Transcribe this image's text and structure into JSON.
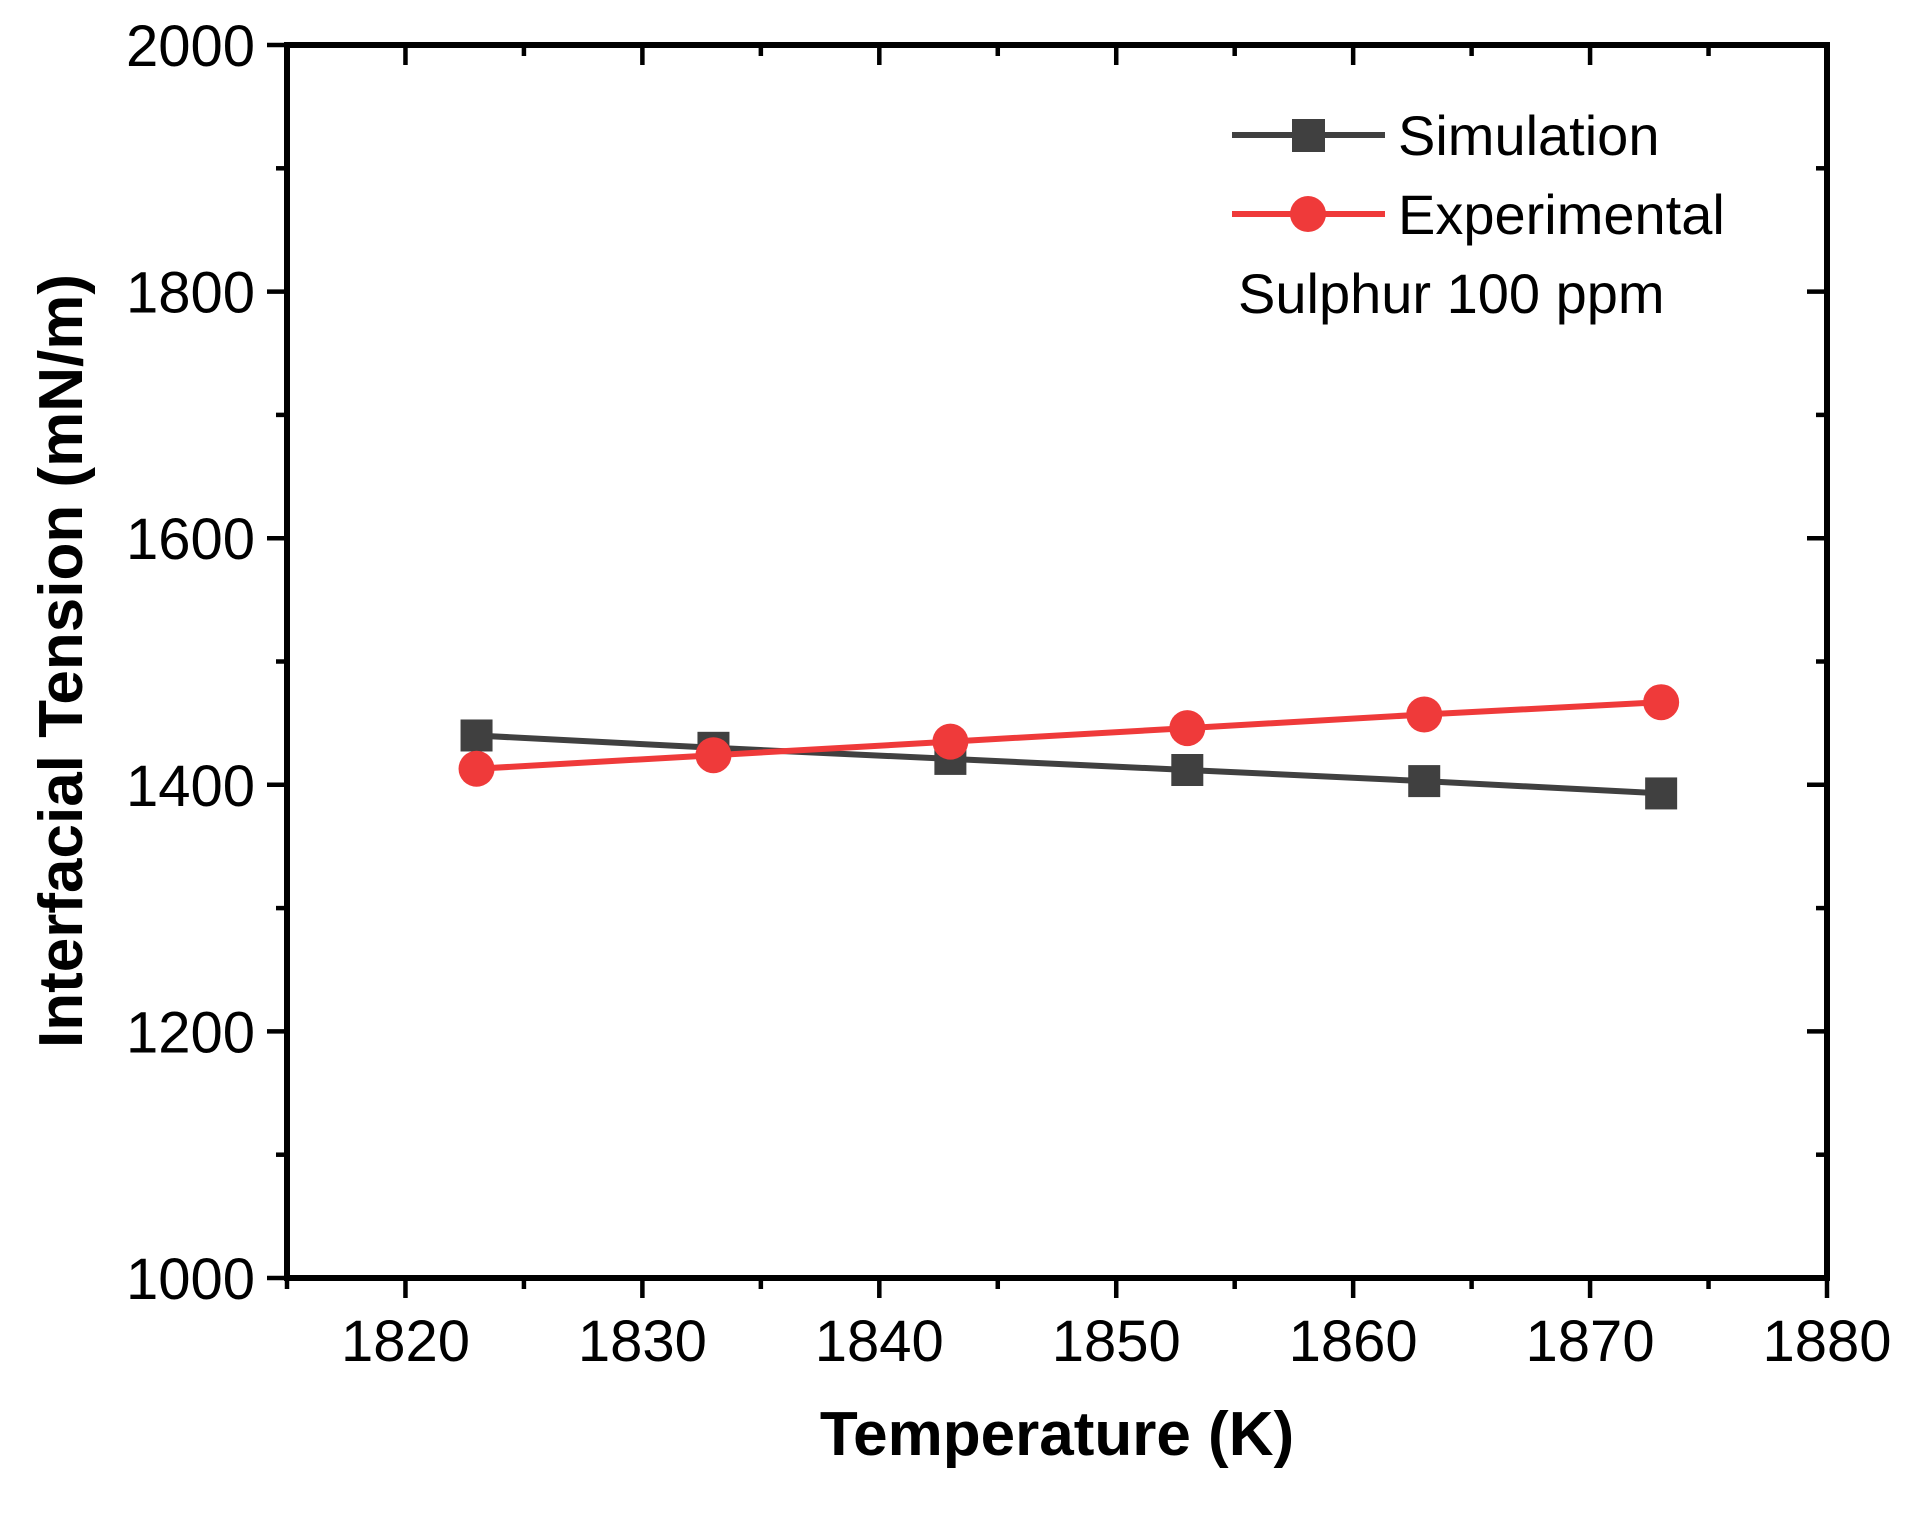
{
  "chart_data": {
    "type": "line",
    "title": "",
    "xlabel": "Temperature (K)",
    "ylabel": "Interfacial Tension (mN/m)",
    "xlim": [
      1815,
      1880
    ],
    "ylim": [
      1000,
      2000
    ],
    "x_major_ticks": [
      1820,
      1830,
      1840,
      1850,
      1860,
      1870,
      1880
    ],
    "y_major_ticks": [
      1000,
      1200,
      1400,
      1600,
      1800,
      2000
    ],
    "x_tick_labels": [
      "1820",
      "1830",
      "1840",
      "1850",
      "1860",
      "1870",
      "1880"
    ],
    "y_tick_labels": [
      "1000",
      "1200",
      "1400",
      "1600",
      "1800",
      "2000"
    ],
    "grid": false,
    "legend_position": "top-right",
    "annotation": "Sulphur 100 ppm",
    "series": [
      {
        "name": "Simulation",
        "marker": "square",
        "color": "#404040",
        "x": [
          1823,
          1833,
          1843,
          1853,
          1863,
          1873
        ],
        "values": [
          1440,
          1430,
          1421,
          1412,
          1403,
          1393
        ]
      },
      {
        "name": "Experimental",
        "marker": "circle",
        "color": "#ef3a3a",
        "x": [
          1823,
          1833,
          1843,
          1853,
          1863,
          1873
        ],
        "values": [
          1413,
          1424,
          1435,
          1446,
          1457,
          1467
        ]
      }
    ]
  }
}
